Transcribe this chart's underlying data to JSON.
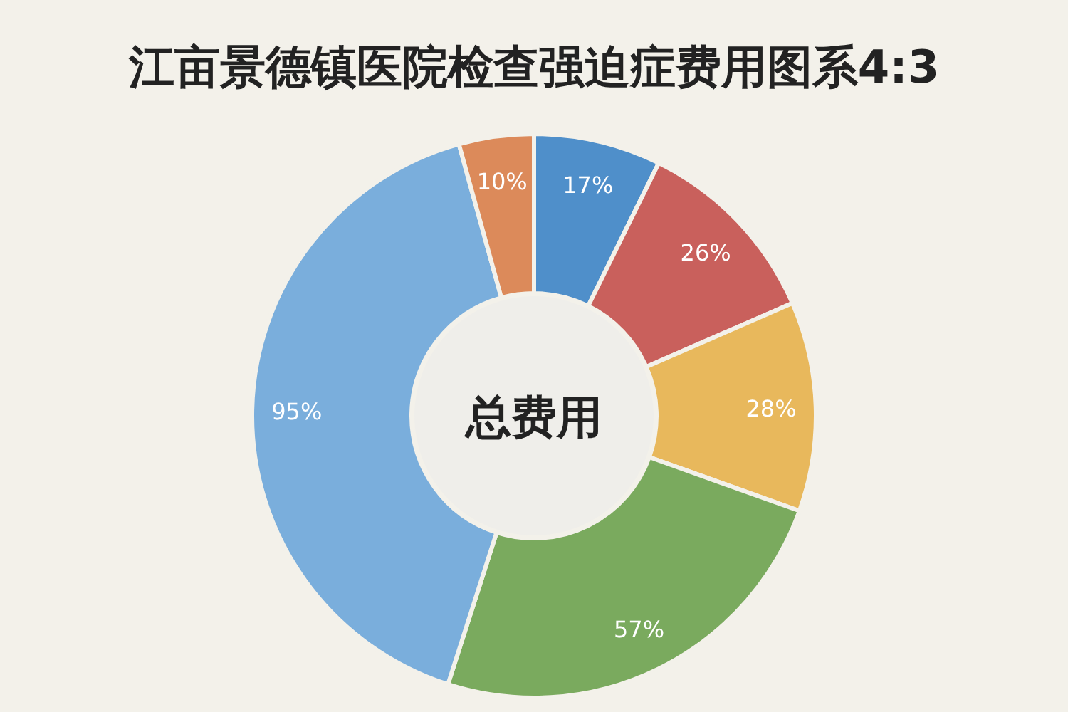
{
  "chart_data": {
    "type": "donut",
    "title": "江亩景德镇医院检查强迫症费用图系4:3",
    "annotations": [
      "总费用"
    ],
    "categories": [
      null,
      null,
      null,
      null,
      null,
      null
    ],
    "values": [
      17,
      26,
      28,
      57,
      95,
      10
    ],
    "colors": [
      "#4f8fca",
      "#c9605c",
      "#e8b85c",
      "#7aaa5e",
      "#7aaedc",
      "#dc8a5a"
    ],
    "value_labels": [
      "17%",
      "26%",
      "28%",
      "57%",
      "95%",
      "10%"
    ]
  }
}
